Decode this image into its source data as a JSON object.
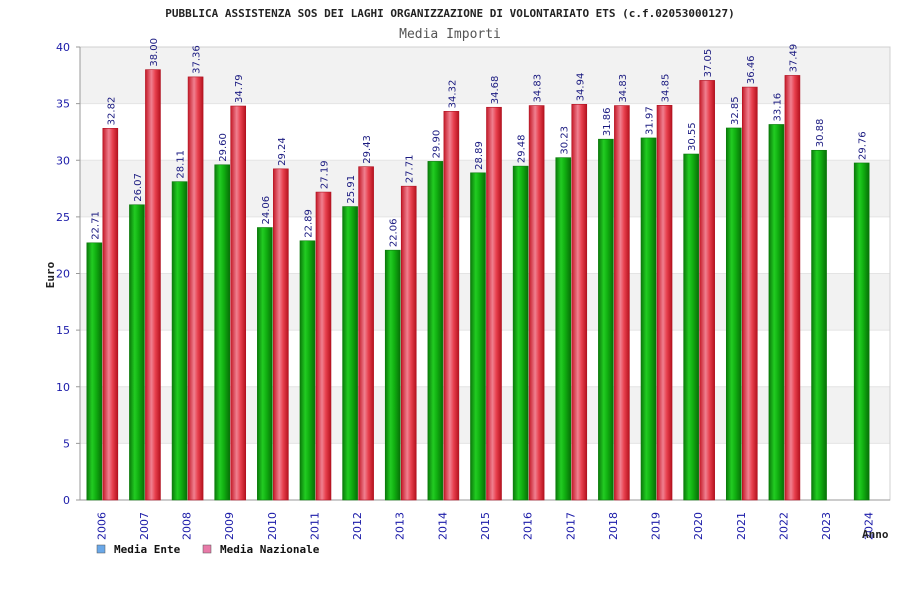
{
  "title": "PUBBLICA ASSISTENZA SOS DEI LAGHI ORGANIZZAZIONE DI VOLONTARIATO ETS (c.f.02053000127)",
  "colors": {
    "ente": "#12b012",
    "nazionale": "#e8283a",
    "legend_ente": "#6aa8e8",
    "legend_nazionale": "#e87aa8",
    "band": "#f2f2f2",
    "tick_text": "#1a1aa8"
  },
  "chart_data": {
    "type": "bar",
    "title": "Media Importi",
    "xlabel": "Anno",
    "ylabel": "Euro",
    "ylim": [
      0,
      40
    ],
    "yticks": [
      0,
      5,
      10,
      15,
      20,
      25,
      30,
      35,
      40
    ],
    "grid": true,
    "legend_position": "bottom-left",
    "categories": [
      "2006",
      "2007",
      "2008",
      "2009",
      "2010",
      "2011",
      "2012",
      "2013",
      "2014",
      "2015",
      "2016",
      "2017",
      "2018",
      "2019",
      "2020",
      "2021",
      "2022",
      "2023",
      "2024"
    ],
    "series": [
      {
        "name": "Media Ente",
        "values": [
          22.71,
          26.07,
          28.11,
          29.6,
          24.06,
          22.89,
          25.91,
          22.06,
          29.9,
          28.89,
          29.48,
          30.23,
          31.86,
          31.97,
          30.55,
          32.85,
          33.16,
          30.88,
          29.76
        ],
        "labels": [
          "22.71",
          "26.07",
          "28.11",
          "29.60",
          "24.06",
          "22.89",
          "25.91",
          "22.06",
          "29.90",
          "28.89",
          "29.48",
          "30.23",
          "31.86",
          "31.97",
          "30.55",
          "32.85",
          "33.16",
          "30.88",
          "29.76"
        ]
      },
      {
        "name": "Media Nazionale",
        "values": [
          32.82,
          38.0,
          37.36,
          34.79,
          29.24,
          27.19,
          29.43,
          27.71,
          34.32,
          34.68,
          34.83,
          34.94,
          34.83,
          34.85,
          37.05,
          36.46,
          37.49,
          null,
          null
        ],
        "labels": [
          "32.82",
          "38.00",
          "37.36",
          "34.79",
          "29.24",
          "27.19",
          "29.43",
          "27.71",
          "34.32",
          "34.68",
          "34.83",
          "34.94",
          "34.83",
          "34.85",
          "37.05",
          "36.46",
          "37.49",
          null,
          null
        ]
      }
    ]
  }
}
